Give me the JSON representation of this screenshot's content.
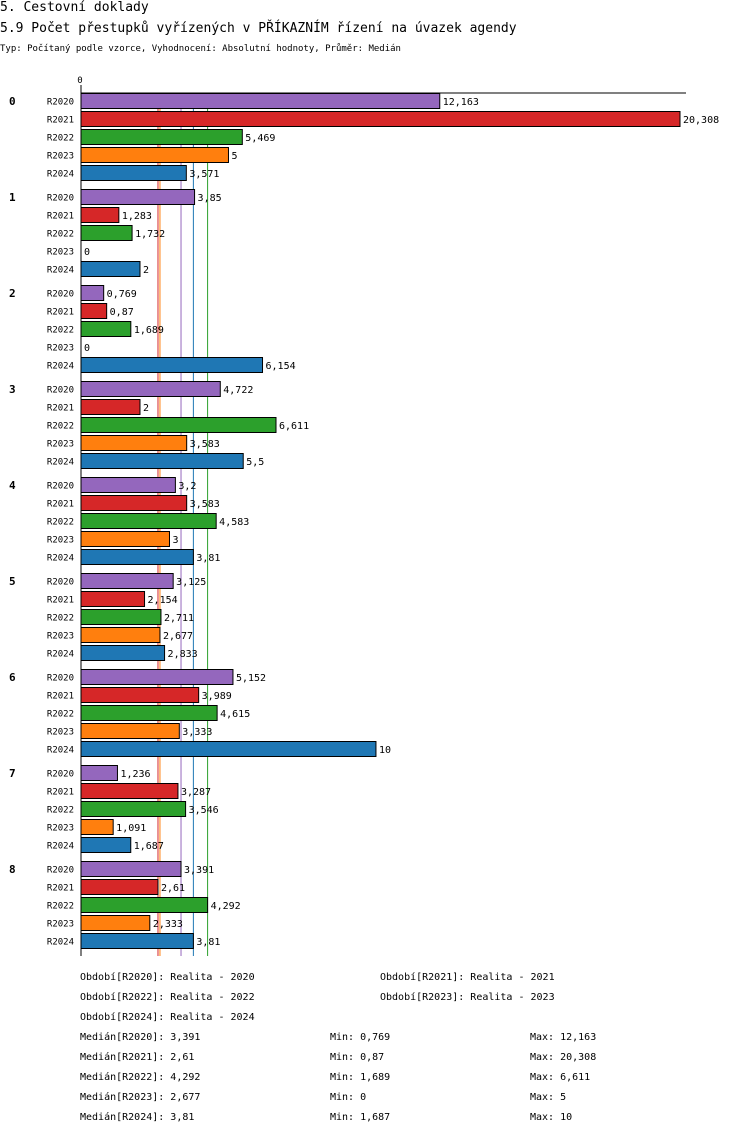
{
  "header": {
    "section": "5. Cestovní doklady",
    "title": "5.9 Počet přestupků vyřízených v PŘÍKAZNÍM řízení na úvazek agendy",
    "subtitle": "Typ: Počítaný podle vzorce, Vyhodnocení: Absolutní hodnoty, Průměr: Medián"
  },
  "chart_data": {
    "type": "bar",
    "orientation": "horizontal",
    "title": "5.9 Počet přestupků vyřízených v PŘÍKAZNÍM řízení na úvazek agendy",
    "x_axis_zero_label": "0",
    "xlim": [
      0,
      20.308
    ],
    "categories": [
      "0",
      "1",
      "2",
      "3",
      "4",
      "5",
      "6",
      "7",
      "8"
    ],
    "series": [
      {
        "name": "R2020",
        "color": "#9467bd",
        "values": [
          12.163,
          3.85,
          0.769,
          4.722,
          3.2,
          3.125,
          5.152,
          1.236,
          3.391
        ],
        "labels": [
          "12,163",
          "3,85",
          "0,769",
          "4,722",
          "3,2",
          "3,125",
          "5,152",
          "1,236",
          "3,391"
        ]
      },
      {
        "name": "R2021",
        "color": "#d62728",
        "values": [
          20.308,
          1.283,
          0.87,
          2,
          3.583,
          2.154,
          3.989,
          3.287,
          2.61
        ],
        "labels": [
          "20,308",
          "1,283",
          "0,87",
          "2",
          "3,583",
          "2,154",
          "3,989",
          "3,287",
          "2,61"
        ]
      },
      {
        "name": "R2022",
        "color": "#2ca02c",
        "values": [
          5.469,
          1.732,
          1.689,
          6.611,
          4.583,
          2.711,
          4.615,
          3.546,
          4.292
        ],
        "labels": [
          "5,469",
          "1,732",
          "1,689",
          "6,611",
          "4,583",
          "2,711",
          "4,615",
          "3,546",
          "4,292"
        ]
      },
      {
        "name": "R2023",
        "color": "#ff7f0e",
        "values": [
          5,
          0,
          0,
          3.583,
          3,
          2.677,
          3.333,
          1.091,
          2.333
        ],
        "labels": [
          "5",
          "0",
          "0",
          "3,583",
          "3",
          "2,677",
          "3,333",
          "1,091",
          "2,333"
        ]
      },
      {
        "name": "R2024",
        "color": "#1f77b4",
        "values": [
          3.571,
          2,
          6.154,
          5.5,
          3.81,
          2.833,
          10,
          1.687,
          3.81
        ],
        "labels": [
          "3,571",
          "2",
          "6,154",
          "5,5",
          "3,81",
          "2,833",
          "10",
          "1,687",
          "3,81"
        ]
      }
    ],
    "median_lines": [
      {
        "series": "R2020",
        "value": 3.391
      },
      {
        "series": "R2021",
        "value": 2.61
      },
      {
        "series": "R2022",
        "value": 4.292
      },
      {
        "series": "R2023",
        "value": 2.677
      },
      {
        "series": "R2024",
        "value": 3.81
      }
    ]
  },
  "legend": {
    "periods": [
      "Období[R2020]: Realita - 2020",
      "Období[R2021]: Realita - 2021",
      "Období[R2022]: Realita - 2022",
      "Období[R2023]: Realita - 2023",
      "Období[R2024]: Realita - 2024"
    ],
    "stats": [
      {
        "median": "Medián[R2020]: 3,391",
        "min": "Min: 0,769",
        "max": "Max: 12,163"
      },
      {
        "median": "Medián[R2021]: 2,61",
        "min": "Min: 0,87",
        "max": "Max: 20,308"
      },
      {
        "median": "Medián[R2022]: 4,292",
        "min": "Min: 1,689",
        "max": "Max: 6,611"
      },
      {
        "median": "Medián[R2023]: 2,677",
        "min": "Min: 0",
        "max": "Max: 5"
      },
      {
        "median": "Medián[R2024]: 3,81",
        "min": "Min: 1,687",
        "max": "Max: 10"
      }
    ]
  }
}
